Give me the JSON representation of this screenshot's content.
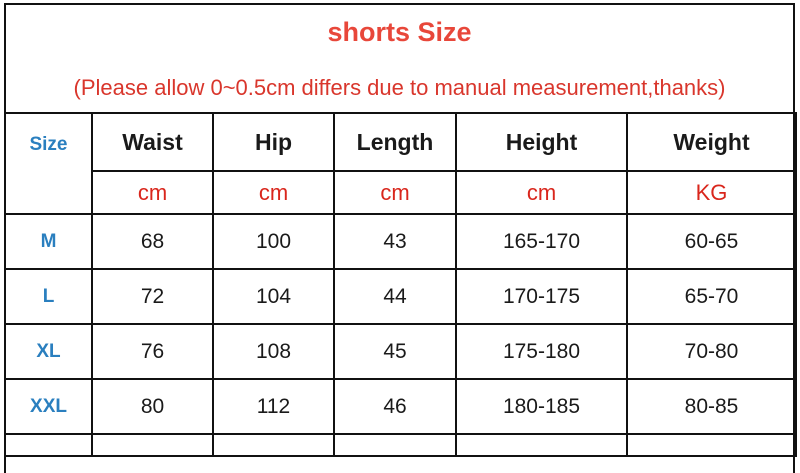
{
  "title": "shorts Size",
  "note": "(Please allow 0~0.5cm differs due to manual measurement,thanks)",
  "columns": [
    "Size",
    "Waist",
    "Hip",
    "Length",
    "Height",
    "Weight"
  ],
  "units": [
    "cm",
    "cm",
    "cm",
    "cm",
    "KG"
  ],
  "rows": [
    [
      "M",
      "68",
      "100",
      "43",
      "165-170",
      "60-65"
    ],
    [
      "L",
      "72",
      "104",
      "44",
      "170-175",
      "65-70"
    ],
    [
      "XL",
      "76",
      "108",
      "45",
      "175-180",
      "70-80"
    ],
    [
      "XXL",
      "80",
      "112",
      "46",
      "180-185",
      "80-85"
    ]
  ],
  "colors": {
    "title": "#e8473a",
    "size_label": "#2a7fbf",
    "unit": "#d9261c"
  }
}
